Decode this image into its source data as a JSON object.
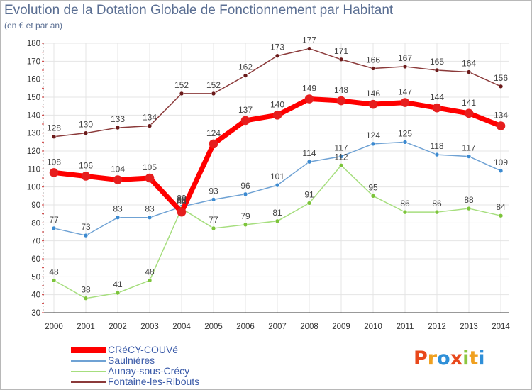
{
  "title": "Evolution de la Dotation Globale de Fonctionnement par Habitant",
  "subtitle": "(en € et par an)",
  "logo": {
    "letters": [
      "P",
      "r",
      "o",
      "x",
      "i",
      "t",
      "i"
    ],
    "colors": [
      "#e8481b",
      "#f0a020",
      "#2e8fd8",
      "#e8481b",
      "#8cc63f",
      "#f0a020",
      "#2e8fd8"
    ]
  },
  "chart_data": {
    "type": "line",
    "title": "Evolution de la Dotation Globale de Fonctionnement par Habitant",
    "ylabel": "(en € et par an)",
    "xlabel": "",
    "ylim": [
      30,
      180
    ],
    "yticks": [
      30,
      40,
      50,
      60,
      70,
      80,
      90,
      100,
      110,
      120,
      130,
      140,
      150,
      160,
      170,
      180
    ],
    "grid": true,
    "legend": "bottom-left",
    "categories": [
      "2000",
      "2001",
      "2002",
      "2003",
      "2004",
      "2005",
      "2006",
      "2007",
      "2008",
      "2009",
      "2010",
      "2011",
      "2012",
      "2013",
      "2014"
    ],
    "series": [
      {
        "name": "CRéCY-COUVé",
        "color": "#ff0000",
        "markerColor": "#e61e1e",
        "width": 7,
        "values": [
          108,
          106,
          104,
          105,
          86,
          124,
          137,
          140,
          149,
          148,
          146,
          147,
          144,
          141,
          134
        ]
      },
      {
        "name": "Saulnières",
        "color": "#6fa2d4",
        "markerColor": "#3c8ad0",
        "width": 1.5,
        "values": [
          77,
          73,
          83,
          83,
          89,
          93,
          96,
          101,
          114,
          117,
          124,
          125,
          118,
          117,
          109
        ]
      },
      {
        "name": "Aunay-sous-Crécy",
        "color": "#a6de7e",
        "markerColor": "#7cc43a",
        "width": 1.5,
        "values": [
          48,
          38,
          41,
          48,
          88,
          77,
          79,
          81,
          91,
          112,
          95,
          86,
          86,
          88,
          84
        ]
      },
      {
        "name": "Fontaine-les-Ribouts",
        "color": "#8b3a3a",
        "markerColor": "#6b1a1a",
        "width": 1.5,
        "values": [
          128,
          130,
          133,
          134,
          152,
          152,
          162,
          173,
          177,
          171,
          166,
          167,
          165,
          164,
          156
        ]
      }
    ],
    "labels_shown": [
      "series-0",
      "series-1",
      "series-2",
      "series-3"
    ]
  }
}
